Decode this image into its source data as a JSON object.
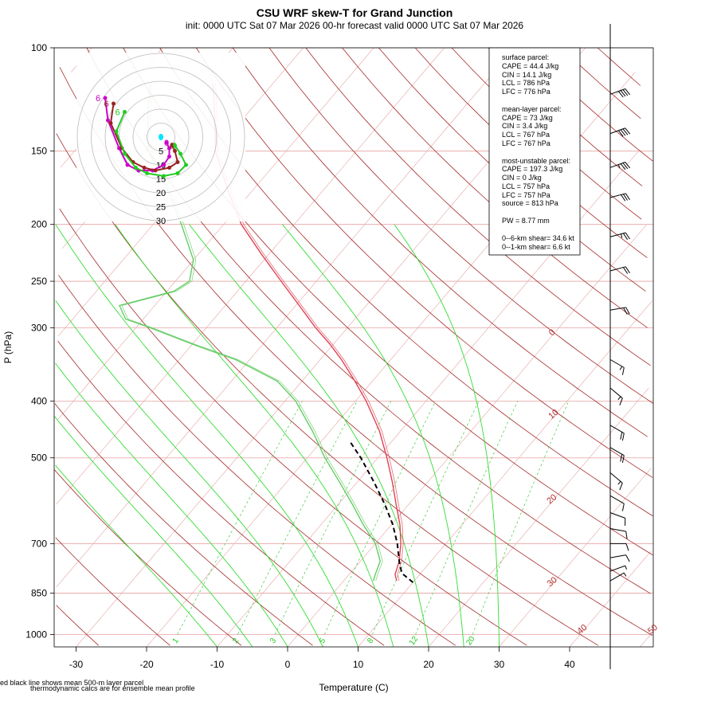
{
  "title": "CSU WRF skew-T for Grand Junction",
  "subtitle": "init: 0000 UTC Sat 07 Mar 2026     00-hr forecast valid 0000 UTC Sat 07 Mar 2026",
  "footnote_1": "ed black line shows mean 500-m layer parcel",
  "footnote_2": "thermodynamic calcs are for ensemble mean profile",
  "stats": {
    "surface_header": "surface parcel:",
    "surface_cape": "CAPE = 44.4 J/kg",
    "surface_cin": "CIN = 14.1 J/kg",
    "surface_lcl": "LCL = 786 hPa",
    "surface_lfc": "LFC = 776 hPa",
    "mixed_header": "mean-layer parcel:",
    "mixed_cape": "CAPE = 73 J/kg",
    "mixed_cin": "CIN = 3.4 J/kg",
    "mixed_lcl": "LCL = 767 hPa",
    "mixed_lfc": "LFC = 767 hPa",
    "mu_header": "most-unstable parcel:",
    "mu_cape": "CAPE = 197.3 J/kg",
    "mu_cin": "CIN = 0 J/kg",
    "mu_lcl": "LCL = 757 hPa",
    "mu_lfc": "LFC = 757 hPa",
    "mu_source": "source = 813 hPa",
    "pw": "PW =  8.77 mm",
    "shear6": "0--6-km shear= 34.6 kt",
    "shear1": "0--1-km shear= 6.6 kt"
  },
  "chart_data": {
    "type": "line",
    "xlabel": "Temperature (C)",
    "ylabel": "P (hPa)",
    "x_ticks": [
      "-30",
      "-20",
      "-10",
      "0",
      "10",
      "20",
      "30",
      "40"
    ],
    "y_ticks": [
      "100",
      "150",
      "200",
      "250",
      "300",
      "400",
      "500",
      "700",
      "850",
      "1000"
    ],
    "xlim": [
      -33,
      45
    ],
    "ylim": [
      1050,
      100
    ],
    "isotherm_labels": [
      "-10",
      "0",
      "10",
      "20",
      "30",
      "40",
      "50"
    ],
    "mixing_ratio_labels": [
      "1",
      "2",
      "3",
      "5",
      "8",
      "12",
      "20"
    ],
    "series": [
      {
        "color": "#dd4455",
        "p": [
          810,
          790,
          750,
          700,
          650,
          600,
          550,
          500,
          450,
          400,
          370,
          340,
          320,
          300,
          275,
          250,
          225,
          200,
          175,
          150,
          130,
          115
        ],
        "t": [
          7.5,
          6.5,
          5.5,
          3.6,
          1.2,
          -1.8,
          -5.0,
          -8.7,
          -13.0,
          -18.5,
          -22.5,
          -27.0,
          -30.5,
          -34.5,
          -39.5,
          -45.0,
          -51.0,
          -57.5,
          -63.5,
          -70.0,
          -74.5,
          -78.5
        ]
      },
      {
        "color": "#66cc66",
        "p": [
          810,
          790,
          750,
          700,
          650,
          600,
          550,
          500,
          450,
          400,
          370,
          340,
          320,
          300,
          290,
          275,
          260,
          250,
          230,
          200,
          175,
          150,
          130,
          115
        ],
        "t": [
          4.2,
          3.7,
          2.8,
          0.0,
          -4.0,
          -8.0,
          -12.5,
          -17.5,
          -22.5,
          -28.5,
          -33.5,
          -42.0,
          -50.0,
          -58.0,
          -62.5,
          -65.0,
          -59.0,
          -58.0,
          -60.0,
          -66.0,
          -72.0,
          -79.5,
          -84.0,
          -87.5
        ]
      },
      {
        "color": "#000000",
        "name": "mean 500-m layer parcel",
        "dashed": true,
        "p": [
          815,
          800,
          786,
          750,
          700,
          650,
          600,
          550,
          500,
          470
        ],
        "t": [
          10.0,
          8.6,
          7.3,
          5.5,
          3.1,
          0.2,
          -3.4,
          -7.6,
          -12.4,
          -15.8
        ]
      }
    ],
    "hodograph": {
      "rings_kt": [
        "5",
        "10",
        "15",
        "20",
        "25",
        "30"
      ],
      "series": [
        {
          "color": "#cc00cc",
          "label_start": "0",
          "label_end": "6",
          "u": [
            2,
            3,
            3,
            1,
            -3,
            -8,
            -12,
            -15,
            -19,
            -20
          ],
          "v": [
            -2,
            -4,
            -7,
            -10,
            -12,
            -12,
            -10,
            -4,
            6,
            14
          ]
        },
        {
          "color": "#992222",
          "label_start": "0",
          "label_end": "6",
          "u": [
            4,
            5,
            6,
            3,
            -2,
            -6,
            -10,
            -14,
            -18,
            -17
          ],
          "v": [
            -3,
            -5,
            -9,
            -11,
            -12,
            -11,
            -9,
            -4,
            5,
            12
          ]
        },
        {
          "color": "#22cc22",
          "label_start": "1",
          "label_end": "6",
          "u": [
            5,
            7,
            9,
            6,
            1,
            -5,
            -9,
            -13,
            -16,
            -13
          ],
          "v": [
            -3,
            -6,
            -10,
            -13,
            -14,
            -13,
            -11,
            -6,
            2,
            9
          ]
        }
      ]
    },
    "wind_barbs": [
      {
        "p": 120,
        "dir": 250,
        "kt": 40
      },
      {
        "p": 140,
        "dir": 250,
        "kt": 40
      },
      {
        "p": 160,
        "dir": 250,
        "kt": 35
      },
      {
        "p": 180,
        "dir": 255,
        "kt": 30
      },
      {
        "p": 210,
        "dir": 255,
        "kt": 25
      },
      {
        "p": 240,
        "dir": 255,
        "kt": 20
      },
      {
        "p": 280,
        "dir": 260,
        "kt": 20
      },
      {
        "p": 340,
        "dir": 300,
        "kt": 15
      },
      {
        "p": 380,
        "dir": 310,
        "kt": 15
      },
      {
        "p": 440,
        "dir": 300,
        "kt": 20
      },
      {
        "p": 480,
        "dir": 300,
        "kt": 20
      },
      {
        "p": 530,
        "dir": 310,
        "kt": 15
      },
      {
        "p": 580,
        "dir": 300,
        "kt": 10
      },
      {
        "p": 620,
        "dir": 290,
        "kt": 10
      },
      {
        "p": 660,
        "dir": 280,
        "kt": 10
      },
      {
        "p": 700,
        "dir": 270,
        "kt": 10
      },
      {
        "p": 740,
        "dir": 260,
        "kt": 10
      },
      {
        "p": 780,
        "dir": 250,
        "kt": 5
      },
      {
        "p": 810,
        "dir": 240,
        "kt": 5
      }
    ]
  }
}
